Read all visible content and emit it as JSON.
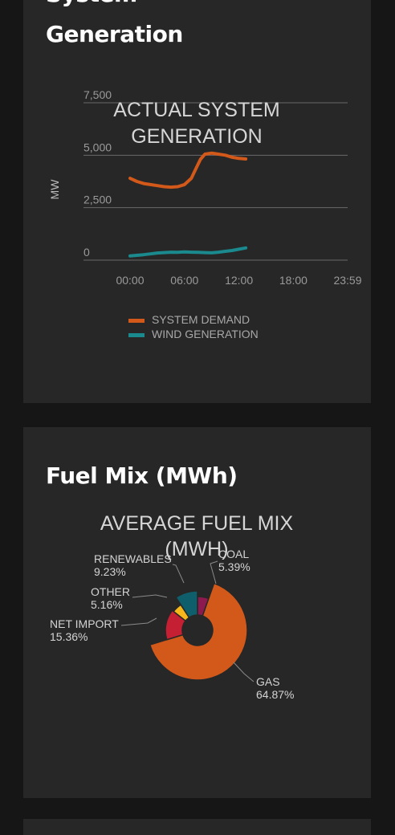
{
  "generation_card": {
    "title_line1": "System",
    "title_line2": "Generation"
  },
  "fuel_card": {
    "title": "Fuel Mix (MWh)"
  },
  "chart_data": [
    {
      "type": "line",
      "title": "ACTUAL SYSTEM GENERATION",
      "ylabel": "MW",
      "ylim": [
        0,
        7500
      ],
      "ytick_labels": [
        "0",
        "2,500",
        "5,000",
        "7,500"
      ],
      "yticks": [
        0,
        2500,
        5000,
        7500
      ],
      "xtick_labels": [
        "00:00",
        "06:00",
        "12:00",
        "18:00",
        "23:59"
      ],
      "xticks": [
        0,
        6,
        12,
        18,
        23.98
      ],
      "xlim": [
        0,
        23.98
      ],
      "grid": true,
      "legend_position": "bottom",
      "series": [
        {
          "name": "SYSTEM DEMAND",
          "color": "#d3591a",
          "x": [
            0,
            0.75,
            1.5,
            2.25,
            3,
            3.75,
            4.5,
            5.25,
            6,
            6.75,
            7.25,
            7.75,
            8.25,
            9,
            9.75,
            10.5,
            11.25,
            12,
            12.75
          ],
          "y": [
            3900,
            3750,
            3650,
            3600,
            3550,
            3500,
            3480,
            3500,
            3600,
            3900,
            4350,
            4800,
            5050,
            5100,
            5050,
            5000,
            4900,
            4850,
            4820
          ]
        },
        {
          "name": "WIND GENERATION",
          "color": "#1a8a8e",
          "x": [
            0,
            0.75,
            1.5,
            2.25,
            3,
            3.75,
            4.5,
            5.25,
            6,
            6.75,
            7.5,
            8.25,
            9,
            9.75,
            10.5,
            11.25,
            12,
            12.75
          ],
          "y": [
            200,
            230,
            260,
            300,
            340,
            360,
            380,
            370,
            390,
            380,
            370,
            360,
            350,
            380,
            420,
            460,
            520,
            580
          ]
        }
      ]
    },
    {
      "type": "pie",
      "title": "AVERAGE FUEL MIX (MWH)",
      "donut": true,
      "slices": [
        {
          "label": "COAL",
          "value": 5.39,
          "value_label": "5.39%",
          "color": "#8d1a4f"
        },
        {
          "label": "GAS",
          "value": 64.87,
          "value_label": "64.87%",
          "color": "#d3591a"
        },
        {
          "label": "NET IMPORT",
          "value": 15.36,
          "value_label": "15.36%",
          "color": "#c41f32"
        },
        {
          "label": "OTHER",
          "value": 5.16,
          "value_label": "5.16%",
          "color": "#f5b71b"
        },
        {
          "label": "RENEWABLES",
          "value": 9.23,
          "value_label": "9.23%",
          "color": "#0e5f6b"
        }
      ]
    }
  ]
}
